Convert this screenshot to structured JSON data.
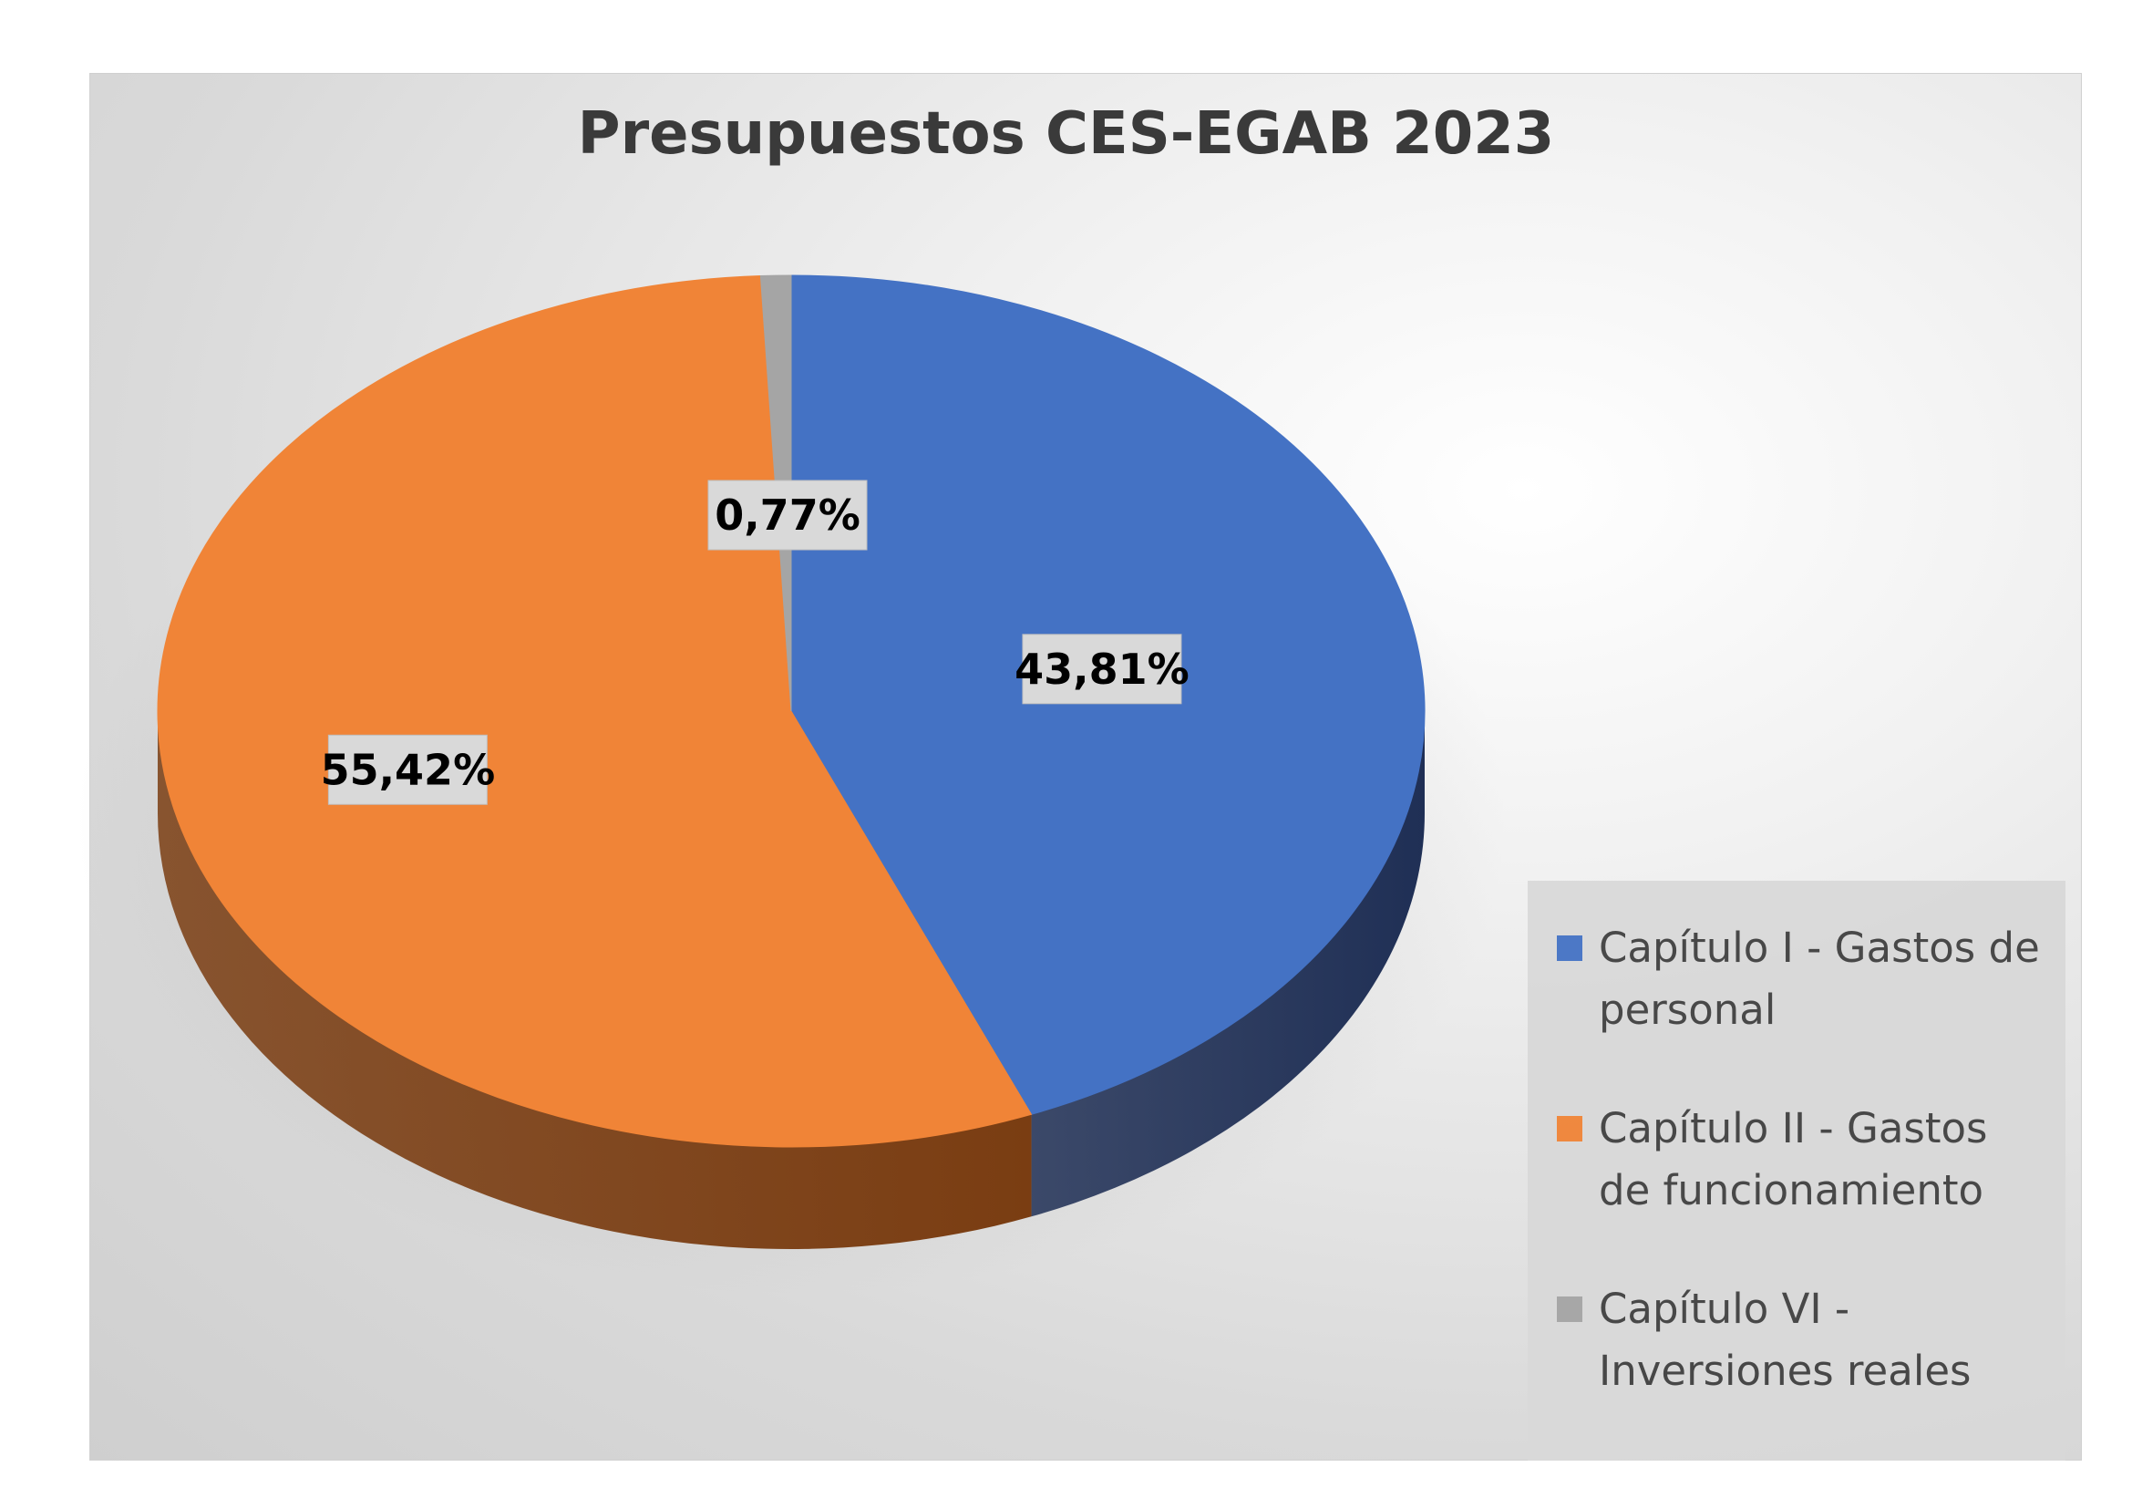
{
  "chart_data": {
    "type": "pie",
    "title": "Presupuestos CES-EGAB 2023",
    "legend_position": "right",
    "slices": [
      {
        "label": "Capítulo I - Gastos de personal",
        "value": 43.81,
        "display": "43,81%",
        "color": "#4472C4",
        "side_color": "#1F2F55"
      },
      {
        "label": "Capítulo II - Gastos de funcionamiento",
        "value": 55.42,
        "display": "55,42%",
        "color": "#F08437",
        "side_color": "#7A3D12"
      },
      {
        "label": "Capítulo VI - Inversiones reales",
        "value": 0.77,
        "display": "0,77%",
        "color": "#A5A5A5",
        "side_color": "#6E6E6E"
      }
    ]
  }
}
